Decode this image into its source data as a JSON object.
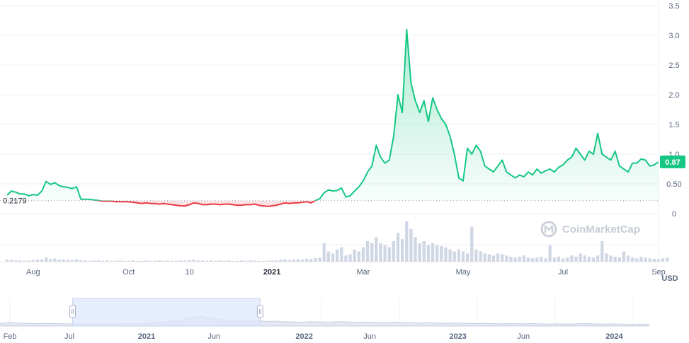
{
  "chart_data": {
    "type": "area",
    "y_axis": {
      "ylim": [
        0,
        3.5
      ],
      "ticks": [
        0,
        0.5,
        1.0,
        1.5,
        2.0,
        2.5,
        3.0,
        3.5
      ],
      "tick_labels": [
        "0",
        "0.50",
        "1.0",
        "1.5",
        "2.0",
        "2.5",
        "3.0",
        "3.5"
      ],
      "position": "right"
    },
    "baseline": {
      "value": 0.2179,
      "label": "0.2179"
    },
    "current_price": {
      "value": 0.87,
      "label": "0.87"
    },
    "currency": "USD",
    "x_ticks": [
      {
        "label": "Aug",
        "bold": false,
        "i": 6
      },
      {
        "label": "Oct",
        "bold": false,
        "i": 28
      },
      {
        "label": "10",
        "bold": false,
        "i": 42
      },
      {
        "label": "2021",
        "bold": true,
        "i": 61
      },
      {
        "label": "Mar",
        "bold": false,
        "i": 82
      },
      {
        "label": "May",
        "bold": false,
        "i": 105
      },
      {
        "label": "Jul",
        "bold": false,
        "i": 128
      },
      {
        "label": "Sep",
        "bold": false,
        "i": 150
      }
    ],
    "price": [
      0.31,
      0.38,
      0.36,
      0.33,
      0.33,
      0.3,
      0.32,
      0.31,
      0.38,
      0.54,
      0.49,
      0.52,
      0.47,
      0.45,
      0.44,
      0.42,
      0.45,
      0.24,
      0.24,
      0.24,
      0.23,
      0.22,
      0.21,
      0.21,
      0.21,
      0.2,
      0.2,
      0.2,
      0.2,
      0.19,
      0.18,
      0.17,
      0.18,
      0.17,
      0.17,
      0.16,
      0.17,
      0.16,
      0.15,
      0.14,
      0.13,
      0.13,
      0.15,
      0.18,
      0.17,
      0.15,
      0.15,
      0.16,
      0.16,
      0.15,
      0.16,
      0.16,
      0.15,
      0.14,
      0.14,
      0.15,
      0.15,
      0.16,
      0.14,
      0.13,
      0.12,
      0.13,
      0.14,
      0.16,
      0.18,
      0.17,
      0.18,
      0.18,
      0.19,
      0.2,
      0.18,
      0.22,
      0.25,
      0.35,
      0.4,
      0.38,
      0.39,
      0.43,
      0.28,
      0.3,
      0.38,
      0.45,
      0.55,
      0.7,
      0.8,
      1.15,
      0.95,
      0.85,
      0.9,
      1.3,
      2.0,
      1.7,
      3.1,
      2.2,
      1.9,
      1.7,
      1.9,
      1.55,
      1.95,
      1.75,
      1.6,
      1.5,
      1.3,
      1.0,
      0.6,
      0.55,
      1.1,
      1.0,
      1.15,
      1.05,
      0.8,
      0.75,
      0.7,
      0.8,
      0.9,
      0.7,
      0.65,
      0.6,
      0.65,
      0.62,
      0.7,
      0.65,
      0.75,
      0.68,
      0.72,
      0.75,
      0.7,
      0.78,
      0.82,
      0.9,
      0.95,
      1.1,
      1.0,
      0.9,
      1.05,
      1.0,
      1.35,
      1.0,
      0.95,
      0.9,
      1.05,
      0.8,
      0.75,
      0.7,
      0.85,
      0.85,
      0.92,
      0.9,
      0.8,
      0.82,
      0.87
    ],
    "volume": [
      0.05,
      0.04,
      0.03,
      0.03,
      0.02,
      0.03,
      0.04,
      0.05,
      0.06,
      0.1,
      0.07,
      0.08,
      0.05,
      0.06,
      0.05,
      0.04,
      0.06,
      0.03,
      0.03,
      0.02,
      0.03,
      0.03,
      0.02,
      0.03,
      0.02,
      0.02,
      0.03,
      0.02,
      0.02,
      0.03,
      0.02,
      0.02,
      0.03,
      0.02,
      0.02,
      0.03,
      0.02,
      0.03,
      0.02,
      0.02,
      0.03,
      0.03,
      0.04,
      0.05,
      0.03,
      0.03,
      0.02,
      0.03,
      0.02,
      0.03,
      0.02,
      0.03,
      0.02,
      0.02,
      0.03,
      0.02,
      0.03,
      0.03,
      0.02,
      0.02,
      0.02,
      0.03,
      0.03,
      0.05,
      0.06,
      0.04,
      0.05,
      0.06,
      0.05,
      0.07,
      0.06,
      0.09,
      0.1,
      0.45,
      0.25,
      0.2,
      0.3,
      0.35,
      0.15,
      0.18,
      0.3,
      0.25,
      0.35,
      0.5,
      0.45,
      0.6,
      0.45,
      0.4,
      0.35,
      0.5,
      0.7,
      0.55,
      0.98,
      0.8,
      0.6,
      0.45,
      0.5,
      0.4,
      0.45,
      0.4,
      0.38,
      0.35,
      0.3,
      0.25,
      0.3,
      0.25,
      0.2,
      0.85,
      0.3,
      0.25,
      0.2,
      0.18,
      0.15,
      0.2,
      0.18,
      0.15,
      0.12,
      0.1,
      0.12,
      0.15,
      0.1,
      0.08,
      0.1,
      0.12,
      0.08,
      0.4,
      0.1,
      0.12,
      0.08,
      0.1,
      0.15,
      0.12,
      0.2,
      0.15,
      0.12,
      0.1,
      0.15,
      0.5,
      0.2,
      0.15,
      0.12,
      0.1,
      0.25,
      0.15,
      0.1,
      0.08,
      0.12,
      0.1,
      0.08,
      0.07,
      0.06,
      0.08,
      0.1
    ],
    "nav_labels": [
      {
        "label": "Feb",
        "bold": false,
        "x": 0.005
      },
      {
        "label": "Jul",
        "bold": false,
        "x": 0.107
      },
      {
        "label": "2021",
        "bold": true,
        "x": 0.226
      },
      {
        "label": "Jun",
        "bold": false,
        "x": 0.33
      },
      {
        "label": "2022",
        "bold": true,
        "x": 0.469
      },
      {
        "label": "Jun",
        "bold": false,
        "x": 0.57
      },
      {
        "label": "2023",
        "bold": true,
        "x": 0.706
      },
      {
        "label": "Jun",
        "bold": false,
        "x": 0.807
      },
      {
        "label": "2024",
        "bold": true,
        "x": 0.947
      }
    ],
    "nav_series": [
      0.1,
      0.12,
      0.11,
      0.1,
      0.09,
      0.1,
      0.09,
      0.08,
      0.08,
      0.07,
      0.08,
      0.07,
      0.07,
      0.08,
      0.09,
      0.08,
      0.1,
      0.12,
      0.15,
      0.18,
      0.22,
      0.3,
      0.35,
      0.28,
      0.25,
      0.2,
      0.22,
      0.18,
      0.2,
      0.17,
      0.18,
      0.16,
      0.15,
      0.14,
      0.16,
      0.15,
      0.14,
      0.16,
      0.15,
      0.13,
      0.14,
      0.13,
      0.12,
      0.14,
      0.13,
      0.12,
      0.11,
      0.12,
      0.11,
      0.1,
      0.11,
      0.1,
      0.09,
      0.1,
      0.09,
      0.08,
      0.09,
      0.08,
      0.09,
      0.08,
      0.07,
      0.08,
      0.07,
      0.08,
      0.09,
      0.08,
      0.07,
      0.08,
      0.07,
      0.06,
      0.07,
      0.06
    ],
    "nav_window": {
      "start": 0.112,
      "end": 0.401
    }
  },
  "watermark": {
    "text": "CoinMarketCap"
  },
  "colors": {
    "up": "#16c784",
    "down": "#ea3943",
    "grid": "#eff2f5",
    "volume": "#cfd6e4",
    "nav_fill": "#e3e8f2",
    "nav_window": "#dde7fb",
    "label": "#58667e"
  }
}
